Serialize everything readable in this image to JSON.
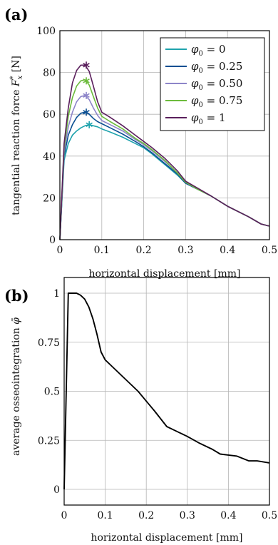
{
  "chart_data": [
    {
      "panel_label": "(a)",
      "type": "line",
      "xlabel": "horizontal displacement [mm]",
      "ylabel": "tangential reaction force F*_x [N]",
      "ylabel_text": "tangential reaction force ",
      "ylabel_symbol": "F",
      "ylabel_sup": "*",
      "ylabel_sub": "x",
      "ylabel_unit": " [N]",
      "xlim": [
        0,
        0.5
      ],
      "ylim": [
        0,
        100
      ],
      "xticks": [
        "0",
        "0.1",
        "0.2",
        "0.3",
        "0.4",
        "0.5"
      ],
      "yticks": [
        "0",
        "20",
        "40",
        "60",
        "80",
        "100"
      ],
      "grid": true,
      "legend_position": "top-right",
      "series": [
        {
          "name": "φ0 = 0",
          "symbol": "φ",
          "sub": "0",
          "value_text": " = 0",
          "color": "#1fa3ad",
          "x": [
            0,
            0.01,
            0.02,
            0.03,
            0.04,
            0.05,
            0.06,
            0.07,
            0.08,
            0.09,
            0.1,
            0.12,
            0.15,
            0.18,
            0.2,
            0.22,
            0.25,
            0.28,
            0.3,
            0.33,
            0.36,
            0.4,
            0.45,
            0.48,
            0.5
          ],
          "y": [
            0,
            38,
            46,
            50,
            52,
            53.5,
            54.5,
            55,
            54.5,
            54,
            53,
            51.5,
            49,
            46,
            44,
            41,
            36,
            31,
            27,
            24,
            21,
            16,
            11,
            7.5,
            6.5
          ],
          "peak": [
            0.07,
            55
          ]
        },
        {
          "name": "φ0 = 0.25",
          "symbol": "φ",
          "sub": "0",
          "value_text": " = 0.25",
          "color": "#0b4f92",
          "x": [
            0,
            0.01,
            0.02,
            0.03,
            0.04,
            0.05,
            0.06,
            0.07,
            0.08,
            0.09,
            0.1,
            0.12,
            0.15,
            0.18,
            0.2,
            0.22,
            0.25,
            0.28,
            0.3,
            0.33,
            0.36,
            0.4,
            0.45,
            0.48,
            0.5
          ],
          "y": [
            0,
            40,
            50,
            55,
            58.5,
            60.5,
            61,
            60,
            58,
            56.5,
            55.5,
            53.5,
            50.5,
            47,
            44.5,
            41.5,
            36.5,
            31.5,
            27,
            24,
            21,
            16,
            11,
            7.5,
            6.5
          ],
          "peak": [
            0.063,
            61
          ]
        },
        {
          "name": "φ0 = 0.50",
          "symbol": "φ",
          "sub": "0",
          "value_text": " = 0.50",
          "color": "#8d85c9",
          "x": [
            0,
            0.01,
            0.02,
            0.03,
            0.04,
            0.05,
            0.06,
            0.07,
            0.08,
            0.09,
            0.1,
            0.12,
            0.15,
            0.18,
            0.2,
            0.22,
            0.25,
            0.28,
            0.3,
            0.33,
            0.36,
            0.4,
            0.45,
            0.48,
            0.5
          ],
          "y": [
            0,
            42,
            54,
            61,
            66,
            68.5,
            69,
            67,
            63,
            59.5,
            57,
            55,
            52,
            48,
            45.5,
            42.5,
            37.5,
            32,
            27.5,
            24,
            21,
            16,
            11,
            7.5,
            6.5
          ],
          "peak": [
            0.063,
            69
          ]
        },
        {
          "name": "φ0 = 0.75",
          "symbol": "φ",
          "sub": "0",
          "value_text": " = 0.75",
          "color": "#6cbb3c",
          "x": [
            0,
            0.01,
            0.02,
            0.03,
            0.04,
            0.05,
            0.06,
            0.07,
            0.08,
            0.09,
            0.1,
            0.12,
            0.15,
            0.18,
            0.2,
            0.22,
            0.25,
            0.28,
            0.3,
            0.33,
            0.36,
            0.4,
            0.45,
            0.48,
            0.5
          ],
          "y": [
            0,
            44,
            59,
            68,
            73.5,
            76,
            76.5,
            74,
            68.5,
            63,
            59,
            56.5,
            53,
            48.5,
            46,
            43,
            38,
            32,
            27.5,
            24,
            21,
            16,
            11,
            7.5,
            6.5
          ],
          "peak": [
            0.063,
            76
          ]
        },
        {
          "name": "φ0 = 1",
          "symbol": "φ",
          "sub": "0",
          "value_text": " = 1",
          "color": "#5a1f5c",
          "x": [
            0,
            0.01,
            0.02,
            0.03,
            0.04,
            0.05,
            0.06,
            0.07,
            0.08,
            0.09,
            0.1,
            0.12,
            0.15,
            0.18,
            0.2,
            0.22,
            0.25,
            0.28,
            0.3,
            0.33,
            0.36,
            0.4,
            0.45,
            0.48,
            0.5
          ],
          "y": [
            0,
            46,
            63,
            75,
            81,
            83.5,
            83.5,
            80.5,
            73.5,
            66,
            61,
            58.5,
            54.5,
            50,
            47,
            44,
            39,
            33,
            28,
            24.5,
            21,
            16,
            11,
            7.5,
            6.5
          ],
          "peak": [
            0.063,
            83.5
          ]
        }
      ]
    },
    {
      "panel_label": "(b)",
      "type": "line",
      "xlabel": "horizontal displacement [mm]",
      "ylabel": "average osseointegration φ̄",
      "ylabel_text": "average osseointegration ",
      "ylabel_symbol": "φ̄",
      "xlim": [
        0,
        0.5
      ],
      "ylim": [
        -0.08,
        1.08
      ],
      "xticks": [
        "0",
        "0.1",
        "0.2",
        "0.3",
        "0.4",
        "0.5"
      ],
      "yticks": [
        "0",
        "0.25",
        "0.5",
        "0.75",
        "1"
      ],
      "grid": true,
      "series": [
        {
          "color": "#000000",
          "x": [
            0,
            0.01,
            0.02,
            0.03,
            0.04,
            0.05,
            0.06,
            0.07,
            0.08,
            0.09,
            0.1,
            0.12,
            0.15,
            0.18,
            0.2,
            0.22,
            0.25,
            0.28,
            0.3,
            0.33,
            0.36,
            0.38,
            0.4,
            0.42,
            0.45,
            0.47,
            0.5
          ],
          "y": [
            0,
            1.0,
            1.0,
            1.0,
            0.99,
            0.97,
            0.93,
            0.87,
            0.79,
            0.7,
            0.66,
            0.62,
            0.56,
            0.5,
            0.45,
            0.4,
            0.32,
            0.29,
            0.27,
            0.235,
            0.205,
            0.18,
            0.175,
            0.17,
            0.145,
            0.145,
            0.135
          ]
        }
      ]
    }
  ]
}
